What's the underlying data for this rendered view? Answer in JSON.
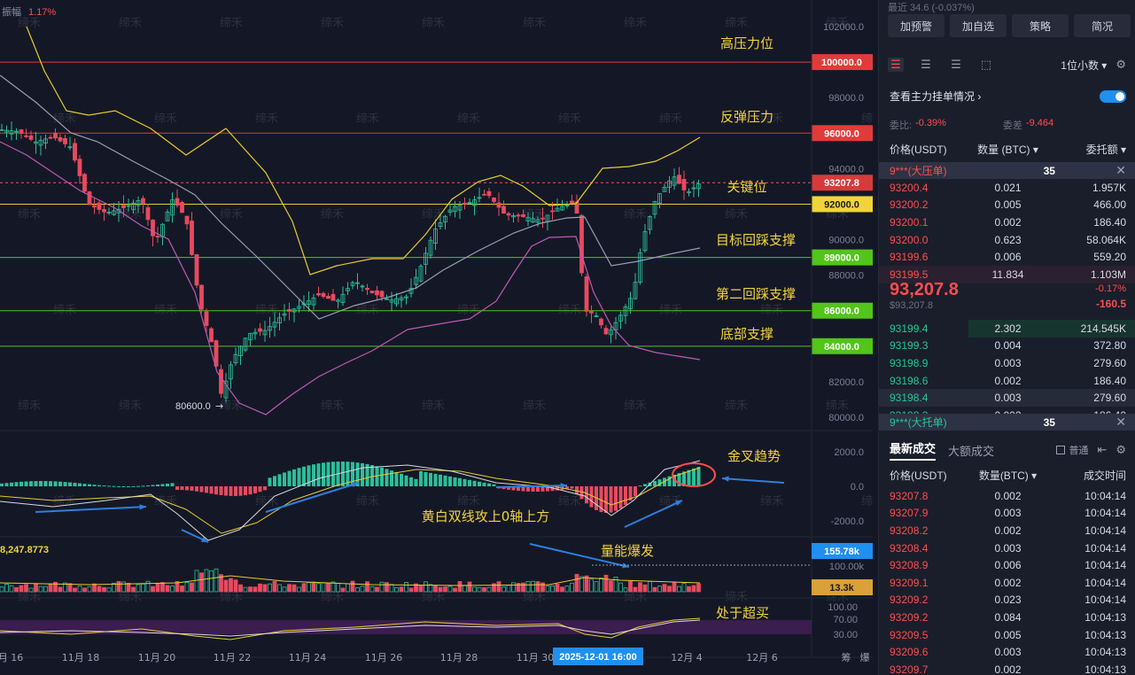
{
  "chart": {
    "amplitude_label": "振幅",
    "amplitude_value": "1.17%",
    "price_axis": [
      "102000.0",
      "98000.0",
      "94000.0",
      "90000.0",
      "88000.0",
      "82000.0",
      "80000.0"
    ],
    "levels": [
      {
        "label": "高压力位",
        "tag": "100000.0",
        "color": "#e03b3b",
        "tag_bg": "#e03b3b",
        "tag_fg": "#ffffff",
        "price": 100000
      },
      {
        "label": "反弹压力",
        "tag": "96000.0",
        "color": "#e03b3b",
        "tag_bg": "#e03b3b",
        "tag_fg": "#ffffff",
        "price": 96000
      },
      {
        "label": "关键位",
        "tag": "92000.0",
        "color": "#e8cc2c",
        "tag_bg": "#f0d43a",
        "tag_fg": "#1a1a1a",
        "price": 92000
      },
      {
        "label": "目标回踩支撑",
        "tag": "89000.0",
        "color": "#52c41a",
        "tag_bg": "#52c41a",
        "tag_fg": "#ffffff",
        "price": 89000
      },
      {
        "label": "第二回踩支撑",
        "tag": "86000.0",
        "color": "#52c41a",
        "tag_bg": "#52c41a",
        "tag_fg": "#ffffff",
        "price": 86000
      },
      {
        "label": "底部支撑",
        "tag": "84000.0",
        "color": "#52c41a",
        "tag_bg": "#52c41a",
        "tag_fg": "#ffffff",
        "price": 84000
      }
    ],
    "current_price_tag": "93207.8",
    "low_marker": "80600.0",
    "macd_axis": [
      "2000.0",
      "0.0",
      "-2000.0"
    ],
    "macd_label": "金叉趋势",
    "macd_note": "黄白双线攻上0轴上方",
    "vol_left": "8,247.8773",
    "vol_label": "量能爆发",
    "vol_tag_top": "155.78k",
    "vol_axis_100": "100.00k",
    "vol_tag_bot": "13.3k",
    "rsi_axis": [
      "100.00",
      "70.00",
      "30.00"
    ],
    "rsi_label": "处于超买",
    "x_axis": [
      "月 16",
      "11月 18",
      "11月 20",
      "11月 22",
      "11月 24",
      "11月 26",
      "11月 28",
      "11月 30",
      "12月 4",
      "12月 6"
    ],
    "x_cursor": "2025-12-01 16:00",
    "x_right": [
      "筹",
      "爆"
    ],
    "watermark": "缔禾"
  },
  "side": {
    "top_hint": "最近   34.6 (-0.037%)",
    "buttons": [
      "加预警",
      "加自选",
      "策略",
      "简况"
    ],
    "decimals": "1位小数 ▾",
    "view_main": "查看主力挂单情况",
    "ratio_label": "委比:",
    "ratio_value": "-0.39%",
    "diff_label": "委差",
    "diff_value": "-9.464",
    "col_price": "价格(USDT)",
    "col_qty": "数量 (BTC) ▾",
    "col_amt": "委托额 ▾",
    "pin_ask_name": "9***(大压单)",
    "pin_ask_qty": "35",
    "asks": [
      [
        "93200.4",
        "0.021",
        "1.957K"
      ],
      [
        "93200.2",
        "0.005",
        "466.00"
      ],
      [
        "93200.1",
        "0.002",
        "186.40"
      ],
      [
        "93200.0",
        "0.623",
        "58.064K"
      ],
      [
        "93199.6",
        "0.006",
        "559.20"
      ],
      [
        "93199.5",
        "11.834",
        "1.103M"
      ]
    ],
    "last_price": "93,207.8",
    "last_sub": "$93,207.8",
    "last_pct": "-0.17%",
    "last_chg": "-160.5",
    "bids": [
      [
        "93199.4",
        "2.302",
        "214.545K"
      ],
      [
        "93199.3",
        "0.004",
        "372.80"
      ],
      [
        "93198.9",
        "0.003",
        "279.60"
      ],
      [
        "93198.6",
        "0.002",
        "186.40"
      ],
      [
        "93198.4",
        "0.003",
        "279.60"
      ],
      [
        "93198.3",
        "0.002",
        "186.40"
      ]
    ],
    "pin_bid_name": "9***(大托单)",
    "pin_bid_qty": "35",
    "tab_trades": "最新成交",
    "tab_big": "大额成交",
    "chk_normal": "普通",
    "th_price": "价格(USDT)",
    "th_qty": "数量(BTC) ▾",
    "th_time": "成交时间",
    "trades": [
      [
        "93207.8",
        "0.002",
        "10:04:14"
      ],
      [
        "93207.9",
        "0.003",
        "10:04:14"
      ],
      [
        "93208.2",
        "0.002",
        "10:04:14"
      ],
      [
        "93208.4",
        "0.003",
        "10:04:14"
      ],
      [
        "93208.9",
        "0.006",
        "10:04:14"
      ],
      [
        "93209.1",
        "0.002",
        "10:04:14"
      ],
      [
        "93209.2",
        "0.023",
        "10:04:14"
      ],
      [
        "93209.2",
        "0.084",
        "10:04:13"
      ],
      [
        "93209.5",
        "0.005",
        "10:04:13"
      ],
      [
        "93209.6",
        "0.003",
        "10:04:13"
      ],
      [
        "93209.7",
        "0.002",
        "10:04:13"
      ]
    ]
  }
}
